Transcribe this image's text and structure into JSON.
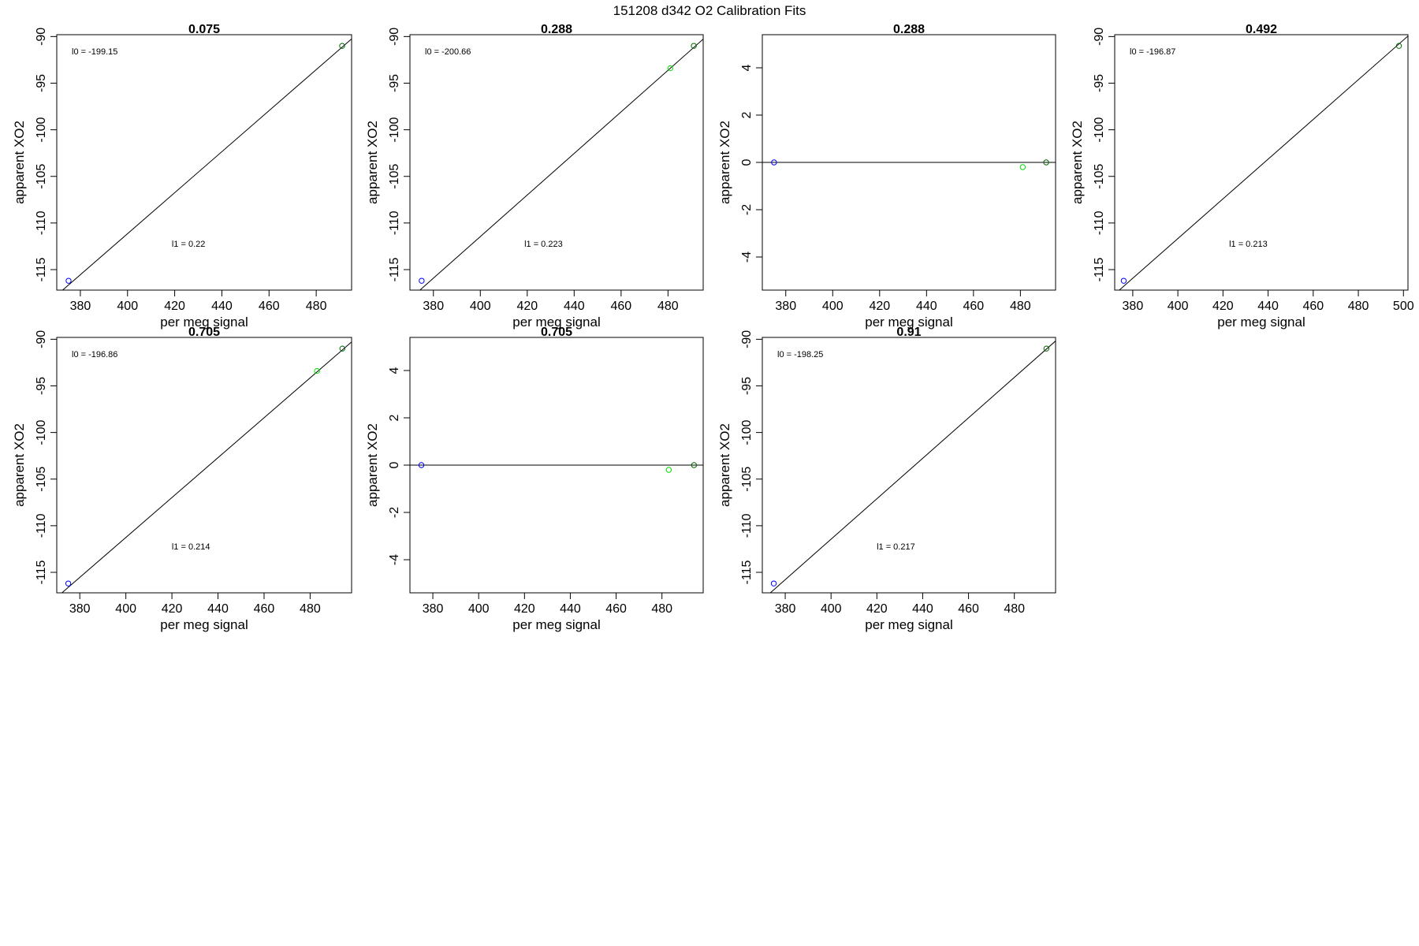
{
  "figure_title": "151208   d342   O2 Calibration Fits",
  "colors": {
    "blue": "#0000ff",
    "green": "#00dd00",
    "dark_green": "#006400",
    "line": "#000000"
  },
  "chart_data": [
    {
      "type": "scatter",
      "title": "0.075",
      "xlabel": "per meg signal",
      "ylabel": "apparent XO2",
      "xlim": [
        370,
        495
      ],
      "ylim": [
        -117.2,
        -89.8
      ],
      "xticks": [
        380,
        400,
        420,
        440,
        460,
        480
      ],
      "yticks": [
        -90,
        -95,
        -100,
        -105,
        -110,
        -115
      ],
      "points": [
        {
          "x": 375,
          "y": -116.2,
          "color": "blue"
        },
        {
          "x": 491,
          "y": -91.0,
          "color": "dark_green"
        }
      ],
      "fit": {
        "intercept": -199.15,
        "slope": 0.22
      },
      "annotations": [
        "l0 =  -199.15",
        "l1 =  0.22"
      ]
    },
    {
      "type": "scatter",
      "title": "0.288",
      "xlabel": "per meg signal",
      "ylabel": "apparent XO2",
      "xlim": [
        370,
        495
      ],
      "ylim": [
        -117.2,
        -89.8
      ],
      "xticks": [
        380,
        400,
        420,
        440,
        460,
        480
      ],
      "yticks": [
        -90,
        -95,
        -100,
        -105,
        -110,
        -115
      ],
      "points": [
        {
          "x": 375,
          "y": -116.2,
          "color": "blue"
        },
        {
          "x": 481,
          "y": -93.4,
          "color": "green"
        },
        {
          "x": 491,
          "y": -91.0,
          "color": "dark_green"
        }
      ],
      "fit": {
        "intercept": -200.66,
        "slope": 0.223
      },
      "annotations": [
        "l0 =  -200.66",
        "l1 =  0.223"
      ]
    },
    {
      "type": "scatter",
      "title": "0.288",
      "xlabel": "per meg signal",
      "ylabel": "apparent XO2",
      "xlim": [
        370,
        495
      ],
      "ylim": [
        -5.4,
        5.4
      ],
      "xticks": [
        380,
        400,
        420,
        440,
        460,
        480
      ],
      "yticks": [
        4,
        2,
        0,
        -2,
        -4
      ],
      "points": [
        {
          "x": 375,
          "y": 0.0,
          "color": "blue"
        },
        {
          "x": 481,
          "y": -0.2,
          "color": "green"
        },
        {
          "x": 491,
          "y": 0.0,
          "color": "dark_green"
        }
      ],
      "fit": {
        "intercept": 0,
        "slope": 0
      },
      "annotations": []
    },
    {
      "type": "scatter",
      "title": "0.492",
      "xlabel": "per meg signal",
      "ylabel": "apparent XO2",
      "xlim": [
        372,
        502
      ],
      "ylim": [
        -117.2,
        -89.8
      ],
      "xticks": [
        380,
        400,
        420,
        440,
        460,
        480,
        500
      ],
      "yticks": [
        -90,
        -95,
        -100,
        -105,
        -110,
        -115
      ],
      "points": [
        {
          "x": 376,
          "y": -116.2,
          "color": "blue"
        },
        {
          "x": 498,
          "y": -91.0,
          "color": "dark_green"
        }
      ],
      "fit": {
        "intercept": -196.87,
        "slope": 0.213
      },
      "annotations": [
        "l0 =  -196.87",
        "l1 =  0.213"
      ]
    },
    {
      "type": "scatter",
      "title": "0.705",
      "xlabel": "per meg signal",
      "ylabel": "apparent XO2",
      "xlim": [
        370,
        498
      ],
      "ylim": [
        -117.2,
        -89.8
      ],
      "xticks": [
        380,
        400,
        420,
        440,
        460,
        480
      ],
      "yticks": [
        -90,
        -95,
        -100,
        -105,
        -110,
        -115
      ],
      "points": [
        {
          "x": 375,
          "y": -116.2,
          "color": "blue"
        },
        {
          "x": 483,
          "y": -93.4,
          "color": "green"
        },
        {
          "x": 494,
          "y": -91.0,
          "color": "dark_green"
        }
      ],
      "fit": {
        "intercept": -196.86,
        "slope": 0.214
      },
      "annotations": [
        "l0 =  -196.86",
        "l1 =  0.214"
      ]
    },
    {
      "type": "scatter",
      "title": "0.705",
      "xlabel": "per meg signal",
      "ylabel": "apparent XO2",
      "xlim": [
        370,
        498
      ],
      "ylim": [
        -5.4,
        5.4
      ],
      "xticks": [
        380,
        400,
        420,
        440,
        460,
        480
      ],
      "yticks": [
        4,
        2,
        0,
        -2,
        -4
      ],
      "points": [
        {
          "x": 375,
          "y": 0.0,
          "color": "blue"
        },
        {
          "x": 483,
          "y": -0.2,
          "color": "green"
        },
        {
          "x": 494,
          "y": 0.0,
          "color": "dark_green"
        }
      ],
      "fit": {
        "intercept": 0,
        "slope": 0
      },
      "annotations": []
    },
    {
      "type": "scatter",
      "title": "0.91",
      "xlabel": "per meg signal",
      "ylabel": "apparent XO2",
      "xlim": [
        370,
        498
      ],
      "ylim": [
        -117.2,
        -89.8
      ],
      "xticks": [
        380,
        400,
        420,
        440,
        460,
        480
      ],
      "yticks": [
        -90,
        -95,
        -100,
        -105,
        -110,
        -115
      ],
      "points": [
        {
          "x": 375,
          "y": -116.2,
          "color": "blue"
        },
        {
          "x": 494,
          "y": -91.0,
          "color": "dark_green"
        }
      ],
      "fit": {
        "intercept": -198.25,
        "slope": 0.217
      },
      "annotations": [
        "l0 =  -198.25",
        "l1 =  0.217"
      ]
    }
  ]
}
